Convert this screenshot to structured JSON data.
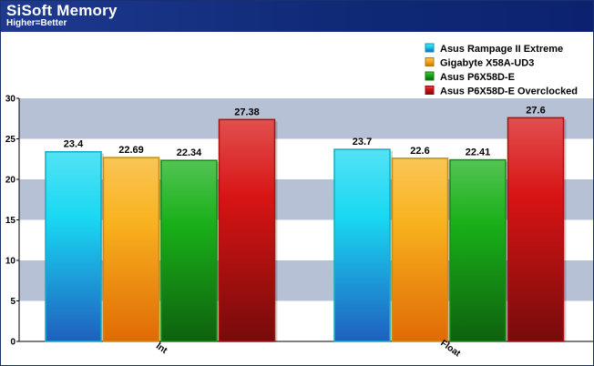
{
  "header": {
    "title": "SiSoft Memory",
    "subtitle": "Higher=Better"
  },
  "chart_data": {
    "type": "bar",
    "title": "SiSoft Memory",
    "subtitle": "Higher=Better",
    "categories": [
      "Int",
      "Float"
    ],
    "series": [
      {
        "name": "Asus Rampage II Extreme",
        "values": [
          23.4,
          23.7
        ],
        "labels": [
          "23.4",
          "23.7"
        ]
      },
      {
        "name": "Gigabyte X58A-UD3",
        "values": [
          22.69,
          22.6
        ],
        "labels": [
          "22.69",
          "22.6"
        ]
      },
      {
        "name": "Asus P6X58D-E",
        "values": [
          22.34,
          22.41
        ],
        "labels": [
          "22.34",
          "22.41"
        ]
      },
      {
        "name": "Asus P6X58D-E Overclocked",
        "values": [
          27.38,
          27.6
        ],
        "labels": [
          "27.38",
          "27.6"
        ]
      }
    ],
    "ylim": [
      0,
      30
    ],
    "yticks": [
      "0",
      "5",
      "10",
      "15",
      "20",
      "25",
      "30"
    ],
    "grid": "alternating horizontal bands",
    "legend": "top-right",
    "colors": {
      "series": [
        "#19d8f2",
        "#f8b21e",
        "#19b019",
        "#d81414"
      ],
      "band_light": "#ffffff",
      "band_dark": "#b7c1d6",
      "header": "#14307e"
    }
  }
}
